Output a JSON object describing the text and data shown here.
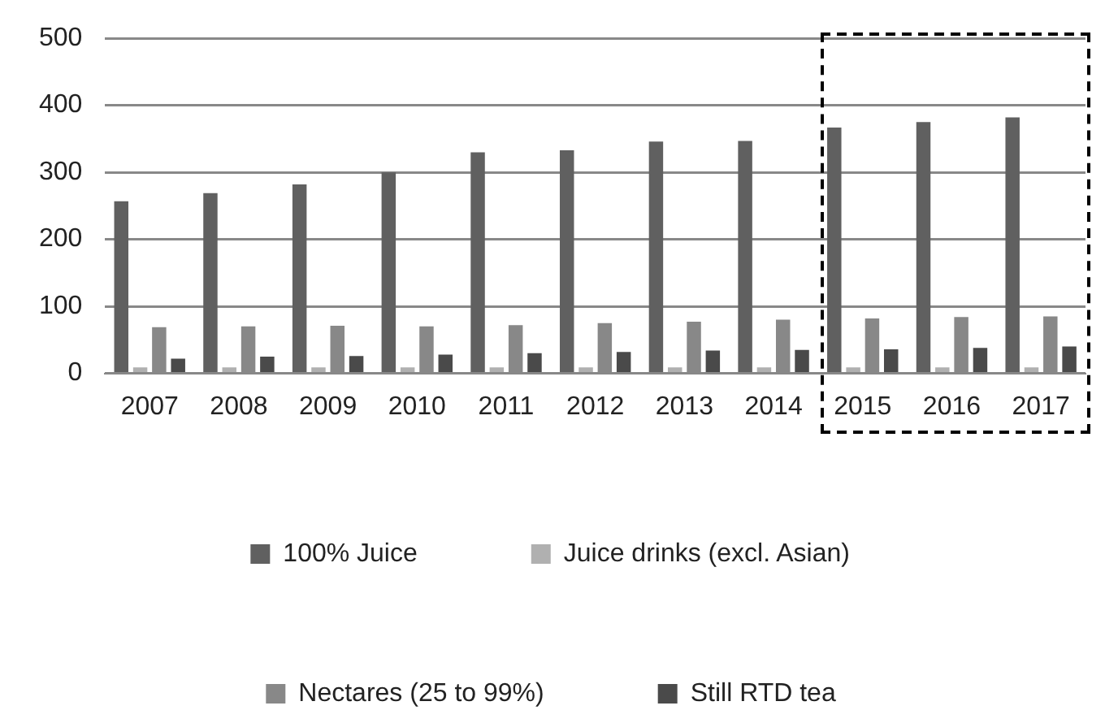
{
  "chart_data": {
    "type": "bar",
    "categories": [
      "2007",
      "2008",
      "2009",
      "2010",
      "2011",
      "2012",
      "2013",
      "2014",
      "2015",
      "2016",
      "2017"
    ],
    "series": [
      {
        "name": "100% Juice",
        "color": "#606060",
        "values": [
          257,
          269,
          282,
          300,
          330,
          333,
          346,
          347,
          367,
          375,
          382
        ]
      },
      {
        "name": "Juice drinks (excl. Asian)",
        "color": "#b0b0b0",
        "values": [
          9,
          9,
          9,
          9,
          9,
          9,
          9,
          9,
          9,
          9,
          9
        ]
      },
      {
        "name": "Nectares (25 to 99%)",
        "color": "#888888",
        "values": [
          69,
          70,
          71,
          70,
          72,
          75,
          77,
          80,
          82,
          84,
          85
        ]
      },
      {
        "name": "Still RTD tea",
        "color": "#4a4a4a",
        "values": [
          22,
          25,
          26,
          28,
          30,
          32,
          34,
          35,
          36,
          38,
          40
        ]
      }
    ],
    "ylim": [
      0,
      500
    ],
    "yticks": [
      0,
      100,
      200,
      300,
      400,
      500
    ],
    "grid": "y",
    "legend": "bottom"
  }
}
